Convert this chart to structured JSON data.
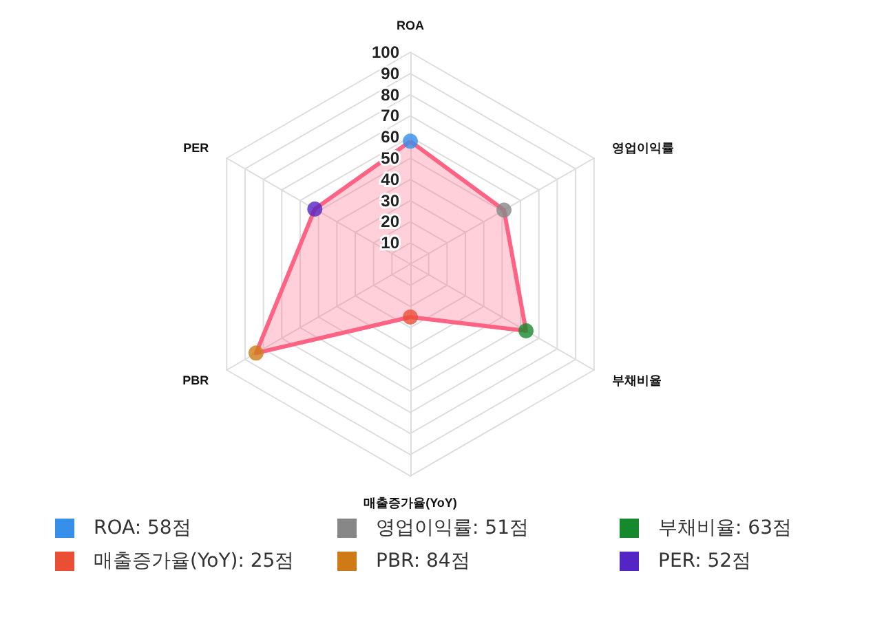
{
  "chart_data": {
    "type": "radar",
    "categories": [
      "ROA",
      "영업이익률",
      "부채비율",
      "매출증가율(YoY)",
      "PBR",
      "PER"
    ],
    "series": [
      {
        "color": "#ff6384",
        "values": [
          58,
          51,
          63,
          25,
          84,
          52
        ],
        "colors": [
          "#368fe8",
          "#878787",
          "#17892d",
          "#ea4f36",
          "#cd7a17",
          "#5424c4"
        ]
      }
    ],
    "annotations": [
      "ROA: 58점",
      "영업이익률: 51점",
      "부채비율: 63점",
      "매출증가율(YoY): 25점",
      "PBR: 84점",
      "PER: 52점"
    ],
    "ylim": [
      0,
      100
    ],
    "yticks": [
      10,
      20,
      30,
      40,
      50,
      60,
      70,
      80,
      90,
      100
    ],
    "grid": true,
    "marker": "circle"
  }
}
